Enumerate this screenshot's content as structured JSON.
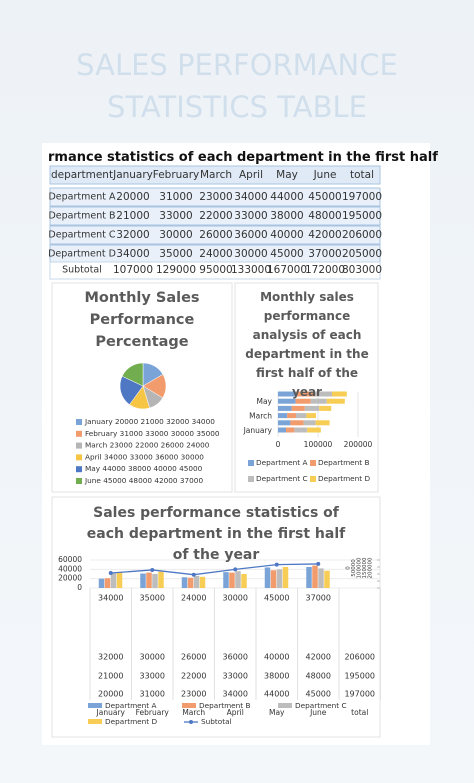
{
  "title": "SALES PERFORMANCE STATISTICS TABLE",
  "table": {
    "title": "rmance statistics of each department in the first half",
    "header": [
      "department",
      "January",
      "February",
      "March",
      "April",
      "May",
      "June",
      "total"
    ],
    "rows": [
      [
        "Department A",
        20000,
        31000,
        23000,
        34000,
        44000,
        45000,
        197000
      ],
      [
        "Department B",
        21000,
        33000,
        22000,
        33000,
        38000,
        48000,
        195000
      ],
      [
        "Department C",
        32000,
        30000,
        26000,
        36000,
        40000,
        42000,
        206000
      ],
      [
        "Department D",
        34000,
        35000,
        24000,
        30000,
        45000,
        37000,
        205000
      ],
      [
        "Subtotal",
        107000,
        129000,
        95000,
        133000,
        167000,
        172000,
        803000
      ]
    ]
  },
  "colors": {
    "months": [
      "#7aa3d8",
      "#f29b6c",
      "#b5b5b5",
      "#f6c544",
      "#4f78c4",
      "#72ad4f"
    ],
    "departments": [
      "#7aa3d8",
      "#f29b6c",
      "#bdbdbd",
      "#f7cd55"
    ],
    "subtotal": "#4f78c4"
  },
  "pie": {
    "title": "Monthly Sales Performance Percentage"
  },
  "bar_chart": {
    "title": "Monthly sales performance analysis of each department in the first half of the year",
    "xlim": [
      0,
      200000
    ],
    "xticks": [
      0,
      100000,
      200000
    ]
  },
  "combo_chart": {
    "title": "Sales performance statistics of each department in the first half of the year",
    "ylim": [
      0,
      60000
    ],
    "yticks": [
      0,
      20000,
      40000,
      60000
    ],
    "y2lim": [
      0,
      200000
    ],
    "y2ticks": [
      0,
      50000,
      100000,
      150000,
      200000
    ],
    "line_name": "Subtotal",
    "total_label": "total"
  }
}
